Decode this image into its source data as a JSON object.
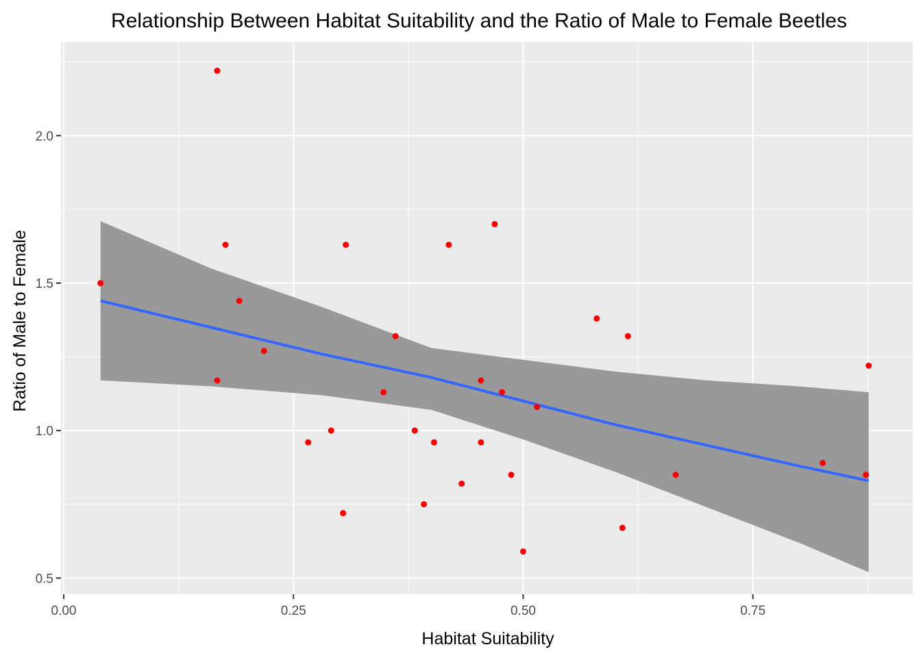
{
  "chart_data": {
    "type": "scatter",
    "title": "Relationship Between Habitat Suitability and the Ratio of Male to Female Beetles",
    "xlabel": "Habitat Suitability",
    "ylabel": "Ratio of Male to Female",
    "xlim": [
      -0.003,
      0.924
    ],
    "ylim": [
      0.445,
      2.318
    ],
    "x_ticks": [
      0.0,
      0.25,
      0.5,
      0.75
    ],
    "x_tick_labels": [
      "0.00",
      "0.25",
      "0.50",
      "0.75"
    ],
    "y_ticks": [
      0.5,
      1.0,
      1.5,
      2.0
    ],
    "y_tick_labels": [
      "0.5",
      "1.0",
      "1.5",
      "2.0"
    ],
    "grid": true,
    "point_color": "#ff0000",
    "fit_color": "#3366ff",
    "band_color": "#999999",
    "panel_color": "#ebebeb",
    "points": [
      {
        "x": 0.04,
        "y": 1.5
      },
      {
        "x": 0.167,
        "y": 2.22
      },
      {
        "x": 0.176,
        "y": 1.63
      },
      {
        "x": 0.191,
        "y": 1.44
      },
      {
        "x": 0.167,
        "y": 1.17
      },
      {
        "x": 0.218,
        "y": 1.27
      },
      {
        "x": 0.266,
        "y": 0.96
      },
      {
        "x": 0.291,
        "y": 1.0
      },
      {
        "x": 0.304,
        "y": 0.72
      },
      {
        "x": 0.307,
        "y": 1.63
      },
      {
        "x": 0.348,
        "y": 1.13
      },
      {
        "x": 0.361,
        "y": 1.32
      },
      {
        "x": 0.382,
        "y": 1.0
      },
      {
        "x": 0.392,
        "y": 0.75
      },
      {
        "x": 0.403,
        "y": 0.96
      },
      {
        "x": 0.419,
        "y": 1.63
      },
      {
        "x": 0.433,
        "y": 0.82
      },
      {
        "x": 0.454,
        "y": 1.17
      },
      {
        "x": 0.454,
        "y": 0.96
      },
      {
        "x": 0.469,
        "y": 1.7
      },
      {
        "x": 0.477,
        "y": 1.13
      },
      {
        "x": 0.487,
        "y": 0.85
      },
      {
        "x": 0.5,
        "y": 0.59
      },
      {
        "x": 0.515,
        "y": 1.08
      },
      {
        "x": 0.58,
        "y": 1.38
      },
      {
        "x": 0.608,
        "y": 0.67
      },
      {
        "x": 0.614,
        "y": 1.32
      },
      {
        "x": 0.666,
        "y": 0.85
      },
      {
        "x": 0.826,
        "y": 0.89
      },
      {
        "x": 0.873,
        "y": 0.85
      },
      {
        "x": 0.876,
        "y": 1.22
      }
    ],
    "fit": {
      "x": [
        0.04,
        0.16,
        0.28,
        0.4,
        0.5,
        0.6,
        0.7,
        0.8,
        0.876
      ],
      "y": [
        1.44,
        1.35,
        1.26,
        1.18,
        1.1,
        1.02,
        0.95,
        0.88,
        0.83
      ],
      "lower": [
        1.17,
        1.15,
        1.12,
        1.07,
        0.97,
        0.86,
        0.74,
        0.62,
        0.52
      ],
      "upper": [
        1.71,
        1.55,
        1.42,
        1.28,
        1.24,
        1.2,
        1.17,
        1.15,
        1.13
      ]
    }
  }
}
